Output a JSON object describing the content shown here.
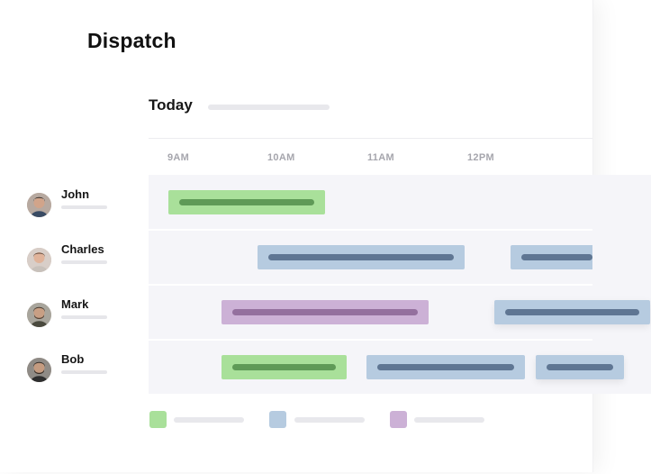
{
  "app": {
    "title": "Dispatch"
  },
  "schedule": {
    "day_label": "Today",
    "times": [
      "9AM",
      "10AM",
      "11AM",
      "12PM"
    ]
  },
  "people": [
    {
      "name": "John"
    },
    {
      "name": "Charles"
    },
    {
      "name": "Mark"
    },
    {
      "name": "Bob"
    }
  ],
  "colors": {
    "green": "#a9e09a",
    "blue": "#b6cbe0",
    "purple": "#ccb1d6"
  },
  "legend": [
    {
      "color": "green"
    },
    {
      "color": "blue"
    },
    {
      "color": "purple"
    }
  ]
}
